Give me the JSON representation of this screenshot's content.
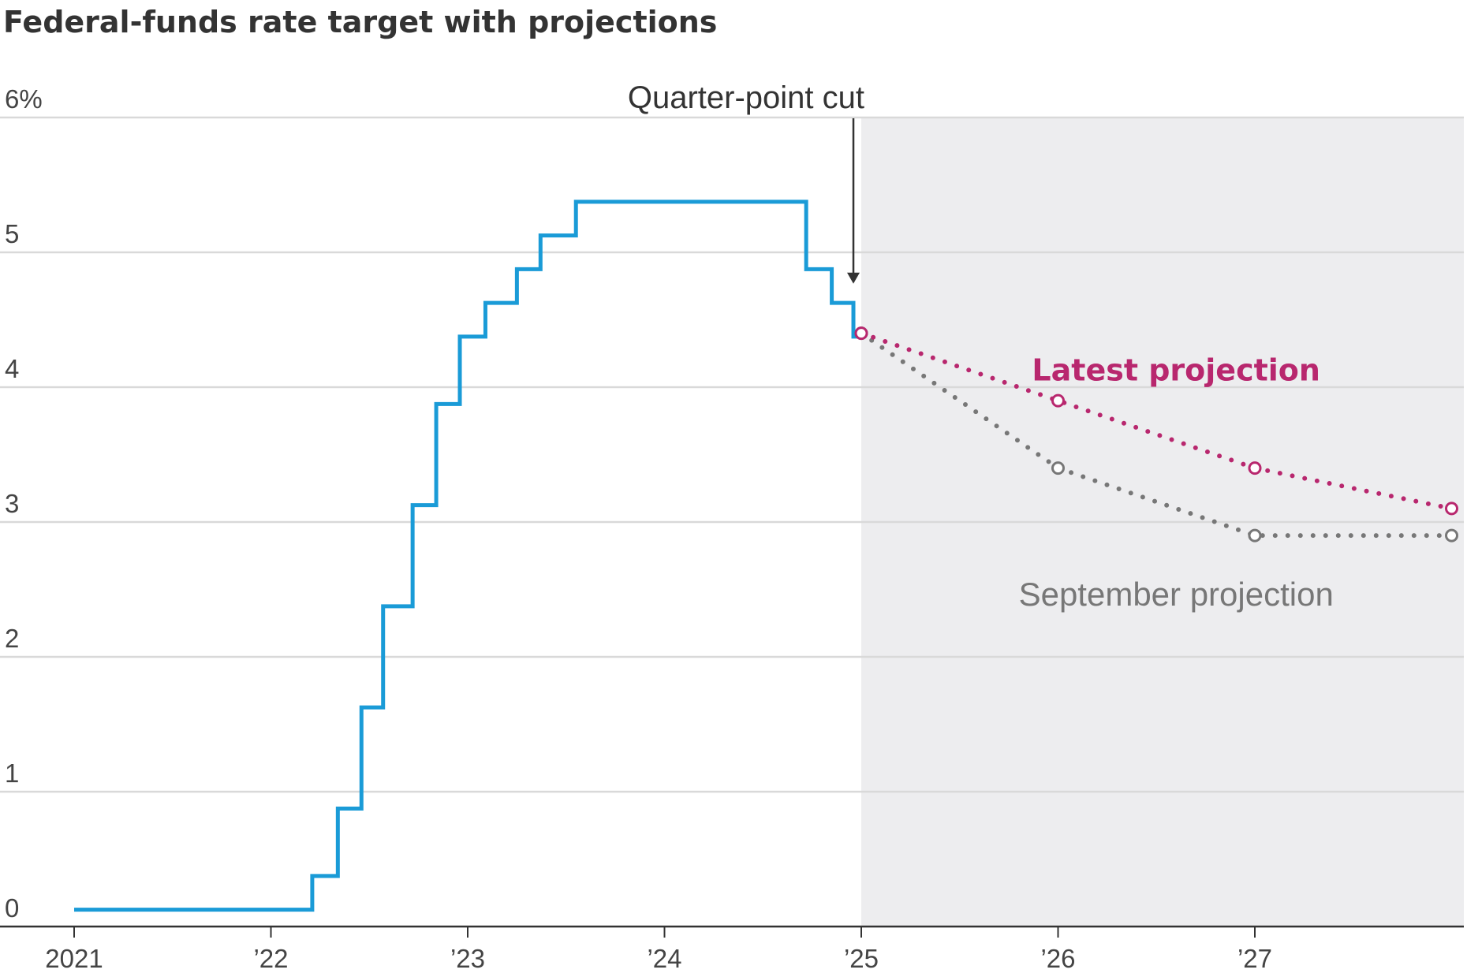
{
  "title": "Federal-funds rate target with projections",
  "colors": {
    "actual": "#1a9bd7",
    "latest": "#b8276e",
    "september": "#777777",
    "projection_shade": "#ededef",
    "grid": "#d9d9d9",
    "axis": "#333333"
  },
  "chart_data": {
    "type": "line",
    "title": "Federal-funds rate target with projections",
    "xlabel": "",
    "ylabel": "",
    "xlim": [
      2021,
      2028
    ],
    "ylim": [
      0,
      6
    ],
    "grid": true,
    "y_ticks": [
      {
        "value": 0,
        "label": "0"
      },
      {
        "value": 1,
        "label": "1"
      },
      {
        "value": 2,
        "label": "2"
      },
      {
        "value": 3,
        "label": "3"
      },
      {
        "value": 4,
        "label": "4"
      },
      {
        "value": 5,
        "label": "5"
      },
      {
        "value": 6,
        "label": "6%"
      }
    ],
    "x_ticks": [
      {
        "value": 2021,
        "label": "2021"
      },
      {
        "value": 2022,
        "label": "’22"
      },
      {
        "value": 2023,
        "label": "’23"
      },
      {
        "value": 2024,
        "label": "’24"
      },
      {
        "value": 2025,
        "label": "’25"
      },
      {
        "value": 2026,
        "label": "’26"
      },
      {
        "value": 2027,
        "label": "’27"
      }
    ],
    "shaded_region": {
      "from": 2025,
      "to": 2028
    },
    "annotation": {
      "text": "Quarter-point cut",
      "x": 2024.96,
      "y": 4.75
    },
    "series": [
      {
        "key": "actual",
        "style": "step",
        "points": [
          [
            2021.0,
            0.125
          ],
          [
            2022.21,
            0.375
          ],
          [
            2022.34,
            0.875
          ],
          [
            2022.46,
            1.625
          ],
          [
            2022.57,
            2.375
          ],
          [
            2022.72,
            3.125
          ],
          [
            2022.84,
            3.875
          ],
          [
            2022.96,
            4.375
          ],
          [
            2023.09,
            4.625
          ],
          [
            2023.25,
            4.875
          ],
          [
            2023.37,
            5.125
          ],
          [
            2023.55,
            5.375
          ],
          [
            2024.72,
            4.875
          ],
          [
            2024.85,
            4.625
          ],
          [
            2024.96,
            4.375
          ]
        ],
        "end_x": 2025.0
      },
      {
        "key": "latest",
        "name": "Latest projection",
        "style": "dotted",
        "points": [
          [
            2025.0,
            4.4
          ],
          [
            2026.0,
            3.9
          ],
          [
            2027.0,
            3.4
          ],
          [
            2028.0,
            3.1
          ]
        ]
      },
      {
        "key": "september",
        "name": "September projection",
        "style": "dotted",
        "points": [
          [
            2025.0,
            4.4
          ],
          [
            2026.0,
            3.4
          ],
          [
            2027.0,
            2.9
          ],
          [
            2028.0,
            2.9
          ]
        ]
      }
    ]
  }
}
